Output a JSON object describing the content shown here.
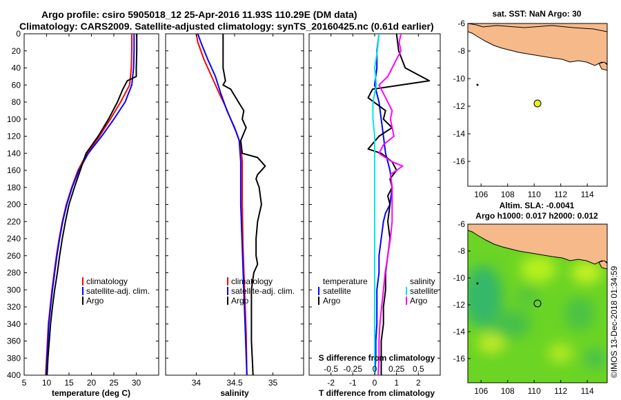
{
  "header": {
    "line1": "Argo profile: csiro 5905018_12 25-Apr-2016 11.93S 110.29E (DM data)",
    "line2": "Climatology: CARS2009. Satellite-adjusted climatology: synTS_20160425.nc (0.61d earlier)"
  },
  "colors": {
    "climatology": "#ff0000",
    "satellite": "#0000ff",
    "argo": "#000000",
    "satellite_s": "#00e5ee",
    "salinity": "#ff00ff",
    "land": "#f5b98a",
    "marker": "#e6f020"
  },
  "chart_data": [
    {
      "id": "temperature",
      "type": "line",
      "xlabel": "temperature (deg C)",
      "xlim": [
        5,
        35
      ],
      "ylim": [
        0,
        400
      ],
      "xticks": [
        "5",
        "10",
        "15",
        "20",
        "25",
        "30"
      ],
      "xtick_values": [
        5,
        10,
        15,
        20,
        25,
        30
      ],
      "yticks": [
        "0",
        "20",
        "40",
        "60",
        "80",
        "100",
        "120",
        "140",
        "160",
        "180",
        "200",
        "220",
        "240",
        "260",
        "280",
        "300",
        "320",
        "340",
        "360",
        "380",
        "400"
      ],
      "legend": [
        "climatology",
        "satellite-adj. clim.",
        "Argo"
      ],
      "series": [
        {
          "name": "climatology",
          "color": "#ff0000",
          "points": [
            [
              29.0,
              0
            ],
            [
              29.0,
              20
            ],
            [
              28.9,
              40
            ],
            [
              28.5,
              60
            ],
            [
              26.5,
              80
            ],
            [
              24.2,
              100
            ],
            [
              21.8,
              120
            ],
            [
              19.0,
              140
            ],
            [
              17.0,
              160
            ],
            [
              15.6,
              180
            ],
            [
              14.4,
              200
            ],
            [
              13.5,
              220
            ],
            [
              12.8,
              240
            ],
            [
              12.2,
              260
            ],
            [
              11.7,
              280
            ],
            [
              11.2,
              300
            ],
            [
              10.8,
              320
            ],
            [
              10.4,
              340
            ],
            [
              10.2,
              360
            ],
            [
              10.0,
              380
            ],
            [
              9.8,
              400
            ]
          ]
        },
        {
          "name": "satellite-adj. clim.",
          "color": "#0000ff",
          "points": [
            [
              29.5,
              0
            ],
            [
              29.5,
              20
            ],
            [
              29.4,
              40
            ],
            [
              29.0,
              60
            ],
            [
              27.5,
              80
            ],
            [
              25.0,
              100
            ],
            [
              22.3,
              120
            ],
            [
              19.3,
              140
            ],
            [
              17.2,
              160
            ],
            [
              15.7,
              180
            ],
            [
              14.5,
              200
            ],
            [
              13.6,
              220
            ],
            [
              12.9,
              240
            ],
            [
              12.3,
              260
            ],
            [
              11.8,
              280
            ],
            [
              11.3,
              300
            ],
            [
              10.9,
              320
            ],
            [
              10.5,
              340
            ],
            [
              10.3,
              360
            ],
            [
              10.1,
              380
            ],
            [
              9.9,
              400
            ]
          ]
        },
        {
          "name": "Argo",
          "color": "#000000",
          "points": [
            [
              30.1,
              0
            ],
            [
              30.1,
              20
            ],
            [
              30.0,
              40
            ],
            [
              30.0,
              50
            ],
            [
              28.0,
              55
            ],
            [
              27.0,
              65
            ],
            [
              25.8,
              80
            ],
            [
              23.8,
              100
            ],
            [
              21.5,
              120
            ],
            [
              18.8,
              140
            ],
            [
              17.5,
              160
            ],
            [
              16.2,
              180
            ],
            [
              15.0,
              200
            ],
            [
              14.2,
              220
            ],
            [
              13.5,
              240
            ],
            [
              12.9,
              260
            ],
            [
              12.4,
              280
            ],
            [
              11.8,
              300
            ],
            [
              11.3,
              320
            ],
            [
              10.9,
              340
            ],
            [
              10.6,
              360
            ],
            [
              10.3,
              380
            ],
            [
              10.1,
              400
            ]
          ]
        }
      ]
    },
    {
      "id": "salinity",
      "type": "line",
      "xlabel": "salinity",
      "xlim": [
        33.6,
        35.4
      ],
      "ylim": [
        0,
        400
      ],
      "xticks": [
        "34",
        "34.5",
        "35"
      ],
      "xtick_values": [
        34,
        34.5,
        35
      ],
      "legend": [
        "climatology",
        "satellite-adj. clim.",
        "Argo"
      ],
      "series": [
        {
          "name": "climatology",
          "color": "#ff0000",
          "points": [
            [
              34.0,
              0
            ],
            [
              34.02,
              10
            ],
            [
              34.1,
              30
            ],
            [
              34.2,
              50
            ],
            [
              34.3,
              70
            ],
            [
              34.38,
              85
            ],
            [
              34.45,
              100
            ],
            [
              34.52,
              115
            ],
            [
              34.58,
              130
            ],
            [
              34.6,
              150
            ],
            [
              34.6,
              200
            ],
            [
              34.61,
              250
            ],
            [
              34.63,
              300
            ],
            [
              34.65,
              350
            ],
            [
              34.66,
              400
            ]
          ]
        },
        {
          "name": "satellite-adj. clim.",
          "color": "#0000ff",
          "points": [
            [
              34.02,
              0
            ],
            [
              34.06,
              10
            ],
            [
              34.15,
              30
            ],
            [
              34.25,
              50
            ],
            [
              34.32,
              70
            ],
            [
              34.4,
              90
            ],
            [
              34.5,
              110
            ],
            [
              34.56,
              125
            ],
            [
              34.58,
              150
            ],
            [
              34.58,
              200
            ],
            [
              34.6,
              250
            ],
            [
              34.62,
              300
            ],
            [
              34.64,
              350
            ],
            [
              34.66,
              400
            ]
          ]
        },
        {
          "name": "Argo",
          "color": "#000000",
          "points": [
            [
              34.35,
              0
            ],
            [
              34.35,
              40
            ],
            [
              34.38,
              55
            ],
            [
              34.35,
              60
            ],
            [
              34.45,
              65
            ],
            [
              34.55,
              80
            ],
            [
              34.62,
              90
            ],
            [
              34.6,
              100
            ],
            [
              34.65,
              110
            ],
            [
              34.58,
              125
            ],
            [
              34.6,
              140
            ],
            [
              34.8,
              145
            ],
            [
              34.85,
              150
            ],
            [
              34.9,
              155
            ],
            [
              34.8,
              165
            ],
            [
              34.78,
              170
            ],
            [
              34.82,
              180
            ],
            [
              34.85,
              200
            ],
            [
              34.8,
              220
            ],
            [
              34.78,
              240
            ],
            [
              34.78,
              260
            ],
            [
              34.8,
              270
            ],
            [
              34.75,
              280
            ],
            [
              34.72,
              300
            ],
            [
              34.72,
              340
            ],
            [
              34.72,
              360
            ],
            [
              34.73,
              380
            ],
            [
              34.74,
              400
            ]
          ]
        }
      ]
    },
    {
      "id": "difference",
      "type": "line",
      "xlabel": "T difference from climatology",
      "xlim": [
        -3,
        3
      ],
      "ylim": [
        0,
        400
      ],
      "xticks": [
        "-2",
        "-1",
        "0",
        "1",
        "2"
      ],
      "xtick_values": [
        -2,
        -1,
        0,
        1,
        2
      ],
      "top_label": "S difference from climatology",
      "s_xticks": [
        "-0.5",
        "-0.25",
        "0",
        "0.25",
        "0.5"
      ],
      "s_xtick_values": [
        -0.5,
        -0.25,
        0,
        0.25,
        0.5
      ],
      "s_xlim": [
        -0.75,
        0.75
      ],
      "legend_t_title": "temperature",
      "legend_s_title": "salinity",
      "legend_t": [
        "satellite",
        "Argo"
      ],
      "legend_s": [
        "satellite",
        "Argo"
      ],
      "series": [
        {
          "name": "T satellite",
          "color": "#0000ff",
          "axis": "T",
          "points": [
            [
              0.2,
              0
            ],
            [
              0.1,
              20
            ],
            [
              0.1,
              40
            ],
            [
              0.0,
              60
            ],
            [
              0.2,
              80
            ],
            [
              0.3,
              100
            ],
            [
              0.4,
              120
            ],
            [
              0.5,
              140
            ],
            [
              0.7,
              160
            ],
            [
              0.8,
              180
            ],
            [
              0.7,
              200
            ],
            [
              0.5,
              210
            ],
            [
              0.4,
              220
            ],
            [
              0.3,
              240
            ],
            [
              0.2,
              260
            ],
            [
              0.2,
              280
            ],
            [
              0.1,
              300
            ],
            [
              0.1,
              320
            ],
            [
              0.1,
              340
            ],
            [
              0.05,
              360
            ],
            [
              0.05,
              380
            ],
            [
              0.0,
              400
            ]
          ]
        },
        {
          "name": "T Argo",
          "color": "#000000",
          "axis": "T",
          "points": [
            [
              1.0,
              0
            ],
            [
              1.1,
              20
            ],
            [
              1.4,
              40
            ],
            [
              2.5,
              55
            ],
            [
              1.2,
              60
            ],
            [
              -0.1,
              65
            ],
            [
              -0.3,
              75
            ],
            [
              0.5,
              90
            ],
            [
              0.4,
              100
            ],
            [
              0.8,
              110
            ],
            [
              0.2,
              120
            ],
            [
              -0.3,
              135
            ],
            [
              0.3,
              140
            ],
            [
              0.8,
              150
            ],
            [
              1.0,
              160
            ],
            [
              0.7,
              170
            ],
            [
              0.8,
              180
            ],
            [
              0.6,
              190
            ],
            [
              0.7,
              200
            ],
            [
              0.6,
              220
            ],
            [
              0.7,
              240
            ],
            [
              0.6,
              260
            ],
            [
              0.5,
              280
            ],
            [
              0.5,
              300
            ],
            [
              0.4,
              320
            ],
            [
              0.4,
              340
            ],
            [
              0.3,
              360
            ],
            [
              0.3,
              380
            ],
            [
              0.3,
              400
            ]
          ]
        },
        {
          "name": "S satellite",
          "color": "#00e5ee",
          "axis": "S",
          "points": [
            [
              0.05,
              0
            ],
            [
              0.03,
              20
            ],
            [
              0.0,
              40
            ],
            [
              0.02,
              60
            ],
            [
              -0.02,
              80
            ],
            [
              -0.02,
              100
            ],
            [
              0.0,
              120
            ],
            [
              0.0,
              150
            ],
            [
              0.0,
              200
            ],
            [
              0.0,
              250
            ],
            [
              0.0,
              300
            ],
            [
              0.0,
              350
            ],
            [
              0.0,
              400
            ]
          ]
        },
        {
          "name": "S Argo",
          "color": "#ff00ff",
          "axis": "S",
          "points": [
            [
              0.3,
              0
            ],
            [
              0.28,
              10
            ],
            [
              0.3,
              20
            ],
            [
              0.2,
              40
            ],
            [
              0.15,
              50
            ],
            [
              0.05,
              60
            ],
            [
              0.1,
              70
            ],
            [
              0.2,
              90
            ],
            [
              0.18,
              100
            ],
            [
              0.22,
              120
            ],
            [
              0.1,
              130
            ],
            [
              0.05,
              140
            ],
            [
              0.2,
              150
            ],
            [
              0.32,
              155
            ],
            [
              0.18,
              165
            ],
            [
              0.2,
              180
            ],
            [
              0.2,
              200
            ],
            [
              0.2,
              220
            ],
            [
              0.18,
              240
            ],
            [
              0.15,
              260
            ],
            [
              0.12,
              280
            ],
            [
              0.1,
              300
            ],
            [
              0.08,
              320
            ],
            [
              0.06,
              340
            ],
            [
              0.05,
              360
            ],
            [
              0.05,
              380
            ],
            [
              0.04,
              400
            ]
          ]
        }
      ]
    }
  ],
  "maps": {
    "sst": {
      "title": "sat. SST: NaN Argo: 30",
      "xticks": [
        "106",
        "108",
        "110",
        "112",
        "114"
      ],
      "yticks": [
        "-6",
        "-8",
        "-10",
        "-12",
        "-14",
        "-16"
      ]
    },
    "sla": {
      "title1": "Altim. SLA: -0.0041",
      "title2": "Argo h1000: 0.017 h2000: 0.012",
      "xticks": [
        "106",
        "108",
        "110",
        "112",
        "114"
      ],
      "yticks": [
        "-6",
        "-8",
        "-10",
        "-12",
        "-14",
        "-16"
      ]
    }
  },
  "footer": {
    "watermark": "©IMOS 13-Dec-2018 01:34:59"
  }
}
